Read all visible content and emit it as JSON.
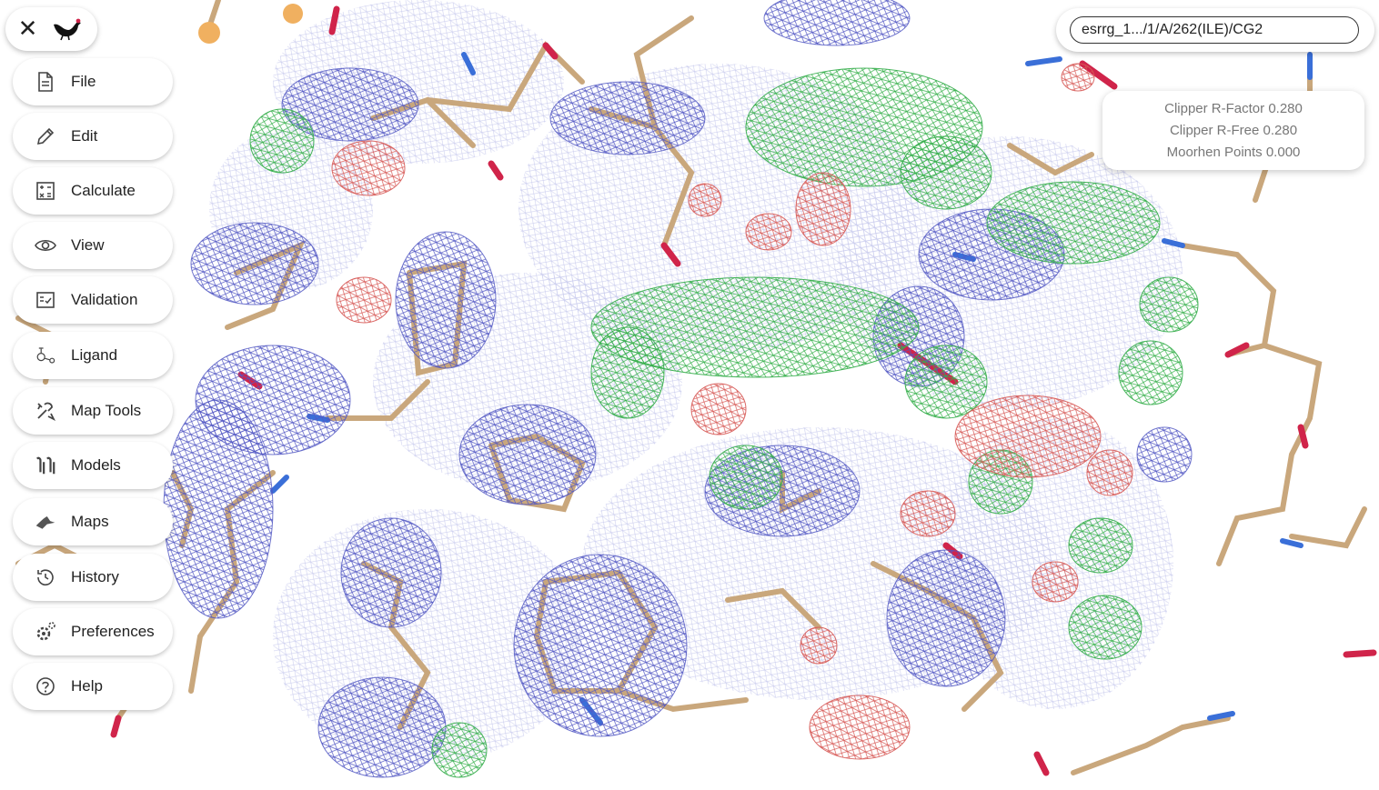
{
  "app": {
    "close_symbol": "✕"
  },
  "menu": [
    {
      "label": "File",
      "icon": "file-icon"
    },
    {
      "label": "Edit",
      "icon": "pencil-icon"
    },
    {
      "label": "Calculate",
      "icon": "calculator-icon"
    },
    {
      "label": "View",
      "icon": "eye-icon"
    },
    {
      "label": "Validation",
      "icon": "validation-icon"
    },
    {
      "label": "Ligand",
      "icon": "ligand-icon"
    },
    {
      "label": "Map Tools",
      "icon": "tools-icon"
    },
    {
      "label": "Models",
      "icon": "models-icon"
    },
    {
      "label": "Maps",
      "icon": "maps-icon"
    },
    {
      "label": "History",
      "icon": "history-icon"
    },
    {
      "label": "Preferences",
      "icon": "preferences-icon"
    },
    {
      "label": "Help",
      "icon": "help-icon"
    }
  ],
  "search": {
    "value": "esrrg_1.../1/A/262(ILE)/CG2"
  },
  "stats": {
    "r_factor": "Clipper R-Factor 0.280",
    "r_free": "Clipper R-Free 0.280",
    "moorhen_points": "Moorhen Points 0.000"
  },
  "colors": {
    "mesh_blue": "#5a5fc8",
    "mesh_green": "#3cb44b",
    "mesh_red": "#d9534f",
    "carbon": "#c9a77c",
    "oxygen": "#d0244a",
    "nitrogen": "#3a6fd8"
  }
}
